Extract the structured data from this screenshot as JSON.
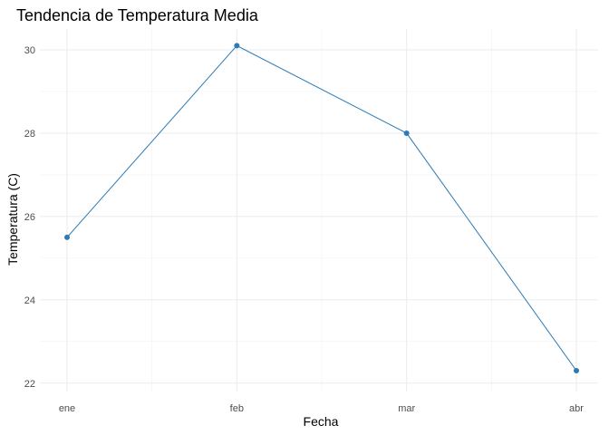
{
  "chart_data": {
    "type": "line",
    "title": "Tendencia de Temperatura Media",
    "xlabel": "Fecha",
    "ylabel": "Temperatura (C)",
    "categories": [
      "ene",
      "feb",
      "mar",
      "abr"
    ],
    "series": [
      {
        "values": [
          25.5,
          30.1,
          28.0,
          22.3
        ]
      }
    ],
    "ylim": [
      21.8,
      30.5
    ],
    "yticks": [
      22,
      24,
      26,
      28,
      30
    ],
    "grid": true,
    "legend": "none",
    "colors": {
      "line": "#2c7bb6",
      "point": "#2c7bb6",
      "grid": "#ebebeb"
    }
  }
}
